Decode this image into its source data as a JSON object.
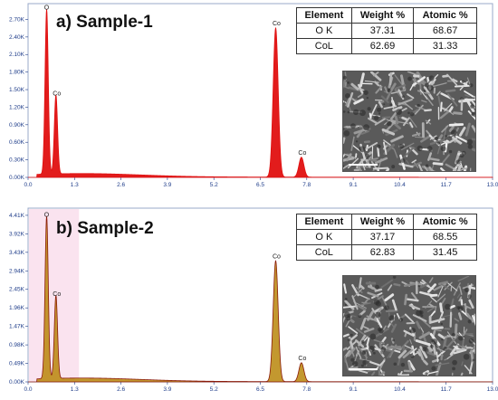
{
  "chart_data": [
    {
      "type": "line",
      "title": "a) Sample-1",
      "xlim": [
        0.0,
        13.0
      ],
      "ylim": [
        0,
        2.97
      ],
      "x_ticks": [
        "0.0",
        "1.3",
        "2.6",
        "3.9",
        "5.2",
        "6.5",
        "7.8",
        "9.1",
        "10.4",
        "11.7",
        "13.0"
      ],
      "y_ticks": [
        "0.00K",
        "0.30K",
        "0.60K",
        "0.90K",
        "1.20K",
        "1.50K",
        "1.80K",
        "2.10K",
        "2.40K",
        "2.70K"
      ],
      "peaks": [
        {
          "label": "O",
          "x": 0.52,
          "y": 2.82
        },
        {
          "label": "Co",
          "x": 0.78,
          "y": 1.35
        },
        {
          "label": "Co",
          "x": 6.93,
          "y": 2.55
        },
        {
          "label": "Co",
          "x": 7.65,
          "y": 0.34
        }
      ],
      "series_color": "#e01010",
      "fill_color": "#e01010",
      "table": {
        "headers": [
          "Element",
          "Weight %",
          "Atomic %"
        ],
        "rows": [
          [
            "O K",
            "37.31",
            "68.67"
          ],
          [
            "CoL",
            "62.69",
            "31.33"
          ]
        ]
      }
    },
    {
      "type": "line",
      "title": "b) Sample-2",
      "xlim": [
        0.0,
        13.0
      ],
      "ylim": [
        0,
        4.6
      ],
      "x_ticks": [
        "0.0",
        "1.3",
        "2.6",
        "3.9",
        "5.2",
        "6.5",
        "7.8",
        "9.1",
        "10.4",
        "11.7",
        "13.0"
      ],
      "y_ticks": [
        "0.00K",
        "0.49K",
        "0.98K",
        "1.47K",
        "1.96K",
        "2.45K",
        "2.94K",
        "3.43K",
        "3.92K",
        "4.41K"
      ],
      "peaks": [
        {
          "label": "O",
          "x": 0.52,
          "y": 4.3
        },
        {
          "label": "Co",
          "x": 0.78,
          "y": 2.2
        },
        {
          "label": "Co",
          "x": 6.93,
          "y": 3.2
        },
        {
          "label": "Co",
          "x": 7.65,
          "y": 0.5
        }
      ],
      "series_color": "#8a1a0a",
      "fill_color": "#b8860b",
      "table": {
        "headers": [
          "Element",
          "Weight %",
          "Atomic %"
        ],
        "rows": [
          [
            "O K",
            "37.17",
            "68.55"
          ],
          [
            "CoL",
            "62.83",
            "31.45"
          ]
        ]
      }
    }
  ]
}
